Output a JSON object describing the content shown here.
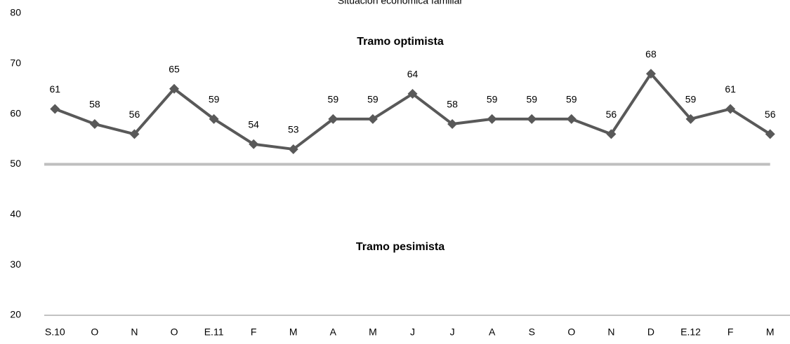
{
  "chart_data": {
    "type": "line",
    "title": "Situación económica familiar",
    "categories": [
      "S.10",
      "O",
      "N",
      "O",
      "E.11",
      "F",
      "M",
      "A",
      "M",
      "J",
      "J",
      "A",
      "S",
      "O",
      "N",
      "D",
      "E.12",
      "F",
      "M"
    ],
    "values": [
      61,
      58,
      56,
      65,
      59,
      54,
      53,
      59,
      59,
      64,
      58,
      59,
      59,
      59,
      56,
      68,
      59,
      61,
      56
    ],
    "color": "#595959",
    "ylim": [
      20,
      80
    ],
    "yticks": [
      20,
      30,
      40,
      50,
      60,
      70,
      80
    ],
    "reference_line": 50,
    "reference_color": "#bfbfbf",
    "annotations": [
      "Tramo optimista",
      "Tramo pesimista"
    ]
  }
}
